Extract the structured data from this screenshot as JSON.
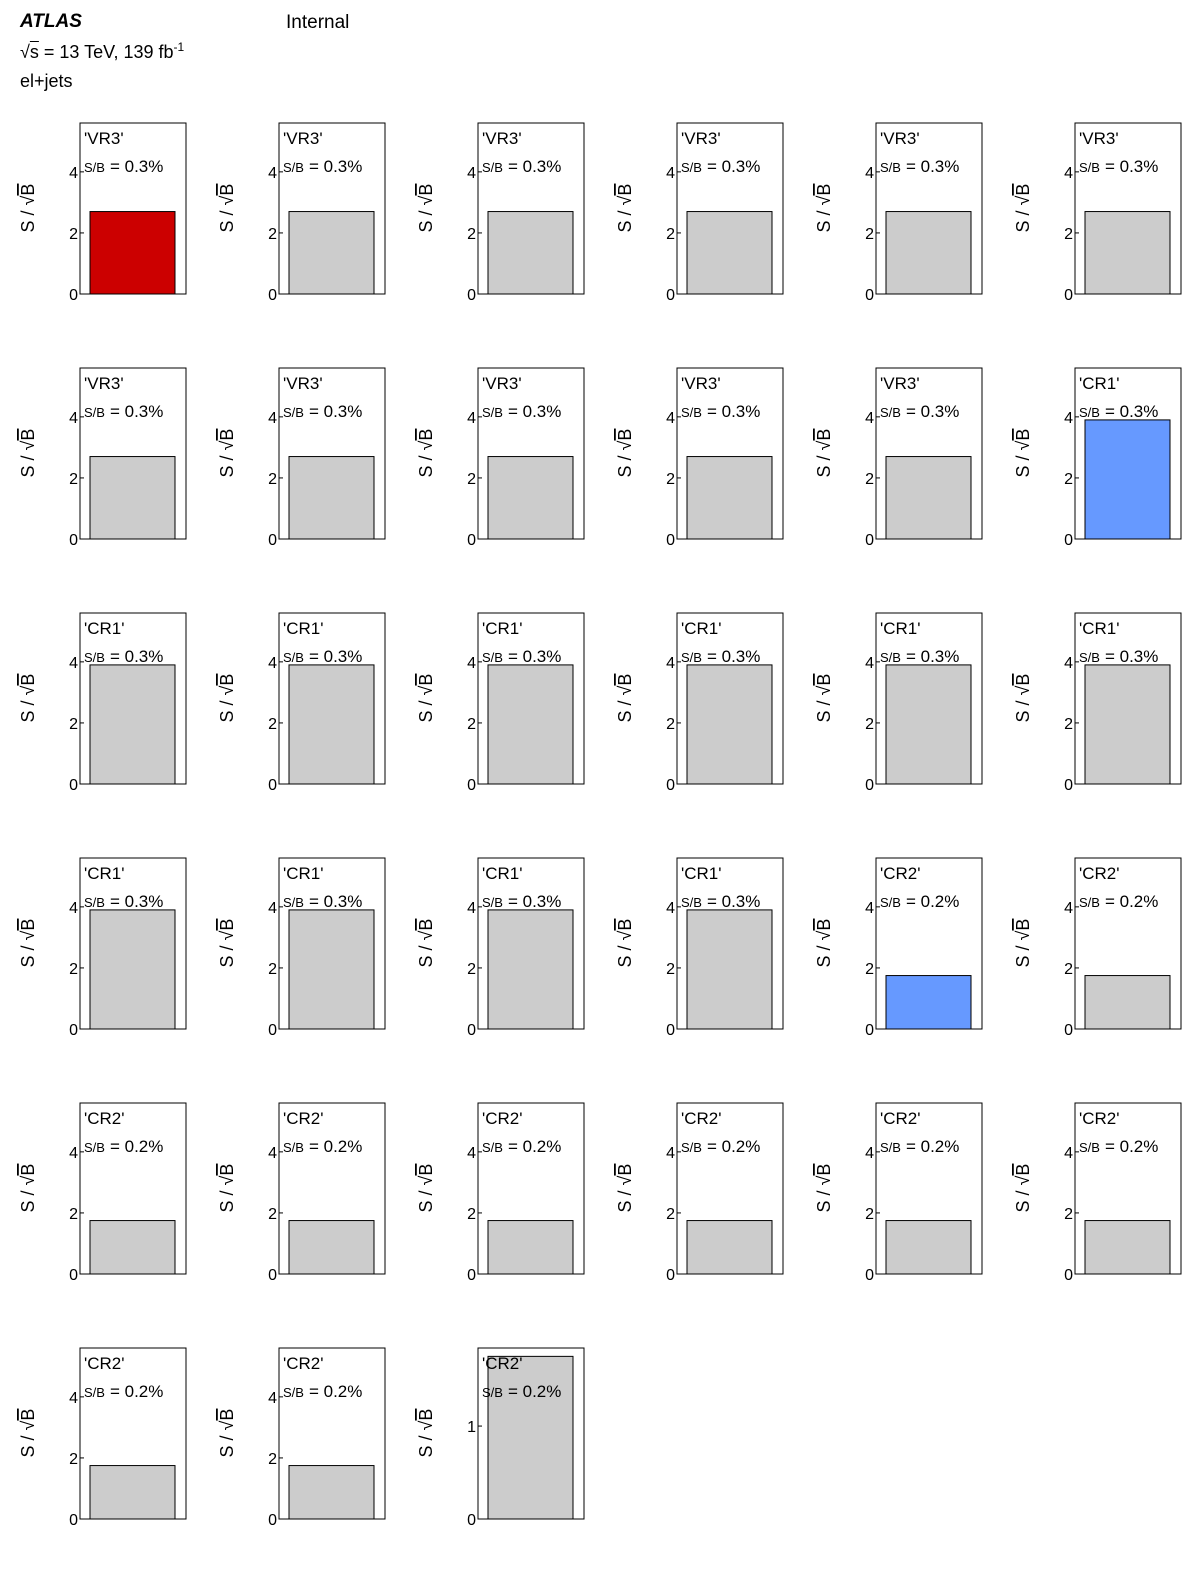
{
  "header": {
    "experiment": "ATLAS",
    "status": "Internal",
    "sqrt_symbol": "√",
    "sqrt_arg": "s",
    "energy_text": " = 13 TeV, 139 fb",
    "lumi_exponent": "-1",
    "channel": "el+jets"
  },
  "axis_label": {
    "prefix": "S / ",
    "sqrt_symbol": "√",
    "sqrt_arg": "B"
  },
  "sb_prefix": "S/B",
  "colors": {
    "default": "#cccccc",
    "red": "#cc0000",
    "blue": "#6699ff"
  },
  "chart_data": [
    {
      "type": "bar",
      "region": "'VR3'",
      "sb": "= 0.3%",
      "value": 2.7,
      "ylim": [
        0,
        5.6
      ],
      "yticks": [
        0,
        2,
        4
      ],
      "color": "red"
    },
    {
      "type": "bar",
      "region": "'VR3'",
      "sb": "= 0.3%",
      "value": 2.7,
      "ylim": [
        0,
        5.6
      ],
      "yticks": [
        0,
        2,
        4
      ],
      "color": "default"
    },
    {
      "type": "bar",
      "region": "'VR3'",
      "sb": "= 0.3%",
      "value": 2.7,
      "ylim": [
        0,
        5.6
      ],
      "yticks": [
        0,
        2,
        4
      ],
      "color": "default"
    },
    {
      "type": "bar",
      "region": "'VR3'",
      "sb": "= 0.3%",
      "value": 2.7,
      "ylim": [
        0,
        5.6
      ],
      "yticks": [
        0,
        2,
        4
      ],
      "color": "default"
    },
    {
      "type": "bar",
      "region": "'VR3'",
      "sb": "= 0.3%",
      "value": 2.7,
      "ylim": [
        0,
        5.6
      ],
      "yticks": [
        0,
        2,
        4
      ],
      "color": "default"
    },
    {
      "type": "bar",
      "region": "'VR3'",
      "sb": "= 0.3%",
      "value": 2.7,
      "ylim": [
        0,
        5.6
      ],
      "yticks": [
        0,
        2,
        4
      ],
      "color": "default"
    },
    {
      "type": "bar",
      "region": "'VR3'",
      "sb": "= 0.3%",
      "value": 2.7,
      "ylim": [
        0,
        5.6
      ],
      "yticks": [
        0,
        2,
        4
      ],
      "color": "default"
    },
    {
      "type": "bar",
      "region": "'VR3'",
      "sb": "= 0.3%",
      "value": 2.7,
      "ylim": [
        0,
        5.6
      ],
      "yticks": [
        0,
        2,
        4
      ],
      "color": "default"
    },
    {
      "type": "bar",
      "region": "'VR3'",
      "sb": "= 0.3%",
      "value": 2.7,
      "ylim": [
        0,
        5.6
      ],
      "yticks": [
        0,
        2,
        4
      ],
      "color": "default"
    },
    {
      "type": "bar",
      "region": "'VR3'",
      "sb": "= 0.3%",
      "value": 2.7,
      "ylim": [
        0,
        5.6
      ],
      "yticks": [
        0,
        2,
        4
      ],
      "color": "default"
    },
    {
      "type": "bar",
      "region": "'VR3'",
      "sb": "= 0.3%",
      "value": 2.7,
      "ylim": [
        0,
        5.6
      ],
      "yticks": [
        0,
        2,
        4
      ],
      "color": "default"
    },
    {
      "type": "bar",
      "region": "'CR1'",
      "sb": "= 0.3%",
      "value": 3.9,
      "ylim": [
        0,
        5.6
      ],
      "yticks": [
        0,
        2,
        4
      ],
      "color": "blue"
    },
    {
      "type": "bar",
      "region": "'CR1'",
      "sb": "= 0.3%",
      "value": 3.9,
      "ylim": [
        0,
        5.6
      ],
      "yticks": [
        0,
        2,
        4
      ],
      "color": "default"
    },
    {
      "type": "bar",
      "region": "'CR1'",
      "sb": "= 0.3%",
      "value": 3.9,
      "ylim": [
        0,
        5.6
      ],
      "yticks": [
        0,
        2,
        4
      ],
      "color": "default"
    },
    {
      "type": "bar",
      "region": "'CR1'",
      "sb": "= 0.3%",
      "value": 3.9,
      "ylim": [
        0,
        5.6
      ],
      "yticks": [
        0,
        2,
        4
      ],
      "color": "default"
    },
    {
      "type": "bar",
      "region": "'CR1'",
      "sb": "= 0.3%",
      "value": 3.9,
      "ylim": [
        0,
        5.6
      ],
      "yticks": [
        0,
        2,
        4
      ],
      "color": "default"
    },
    {
      "type": "bar",
      "region": "'CR1'",
      "sb": "= 0.3%",
      "value": 3.9,
      "ylim": [
        0,
        5.6
      ],
      "yticks": [
        0,
        2,
        4
      ],
      "color": "default"
    },
    {
      "type": "bar",
      "region": "'CR1'",
      "sb": "= 0.3%",
      "value": 3.9,
      "ylim": [
        0,
        5.6
      ],
      "yticks": [
        0,
        2,
        4
      ],
      "color": "default"
    },
    {
      "type": "bar",
      "region": "'CR1'",
      "sb": "= 0.3%",
      "value": 3.9,
      "ylim": [
        0,
        5.6
      ],
      "yticks": [
        0,
        2,
        4
      ],
      "color": "default"
    },
    {
      "type": "bar",
      "region": "'CR1'",
      "sb": "= 0.3%",
      "value": 3.9,
      "ylim": [
        0,
        5.6
      ],
      "yticks": [
        0,
        2,
        4
      ],
      "color": "default"
    },
    {
      "type": "bar",
      "region": "'CR1'",
      "sb": "= 0.3%",
      "value": 3.9,
      "ylim": [
        0,
        5.6
      ],
      "yticks": [
        0,
        2,
        4
      ],
      "color": "default"
    },
    {
      "type": "bar",
      "region": "'CR1'",
      "sb": "= 0.3%",
      "value": 3.9,
      "ylim": [
        0,
        5.6
      ],
      "yticks": [
        0,
        2,
        4
      ],
      "color": "default"
    },
    {
      "type": "bar",
      "region": "'CR2'",
      "sb": "= 0.2%",
      "value": 1.75,
      "ylim": [
        0,
        5.6
      ],
      "yticks": [
        0,
        2,
        4
      ],
      "color": "blue"
    },
    {
      "type": "bar",
      "region": "'CR2'",
      "sb": "= 0.2%",
      "value": 1.75,
      "ylim": [
        0,
        5.6
      ],
      "yticks": [
        0,
        2,
        4
      ],
      "color": "default"
    },
    {
      "type": "bar",
      "region": "'CR2'",
      "sb": "= 0.2%",
      "value": 1.75,
      "ylim": [
        0,
        5.6
      ],
      "yticks": [
        0,
        2,
        4
      ],
      "color": "default"
    },
    {
      "type": "bar",
      "region": "'CR2'",
      "sb": "= 0.2%",
      "value": 1.75,
      "ylim": [
        0,
        5.6
      ],
      "yticks": [
        0,
        2,
        4
      ],
      "color": "default"
    },
    {
      "type": "bar",
      "region": "'CR2'",
      "sb": "= 0.2%",
      "value": 1.75,
      "ylim": [
        0,
        5.6
      ],
      "yticks": [
        0,
        2,
        4
      ],
      "color": "default"
    },
    {
      "type": "bar",
      "region": "'CR2'",
      "sb": "= 0.2%",
      "value": 1.75,
      "ylim": [
        0,
        5.6
      ],
      "yticks": [
        0,
        2,
        4
      ],
      "color": "default"
    },
    {
      "type": "bar",
      "region": "'CR2'",
      "sb": "= 0.2%",
      "value": 1.75,
      "ylim": [
        0,
        5.6
      ],
      "yticks": [
        0,
        2,
        4
      ],
      "color": "default"
    },
    {
      "type": "bar",
      "region": "'CR2'",
      "sb": "= 0.2%",
      "value": 1.75,
      "ylim": [
        0,
        5.6
      ],
      "yticks": [
        0,
        2,
        4
      ],
      "color": "default"
    },
    {
      "type": "bar",
      "region": "'CR2'",
      "sb": "= 0.2%",
      "value": 1.75,
      "ylim": [
        0,
        5.6
      ],
      "yticks": [
        0,
        2,
        4
      ],
      "color": "default"
    },
    {
      "type": "bar",
      "region": "'CR2'",
      "sb": "= 0.2%",
      "value": 1.75,
      "ylim": [
        0,
        5.6
      ],
      "yticks": [
        0,
        2,
        4
      ],
      "color": "default"
    },
    {
      "type": "bar",
      "region": "'CR2'",
      "sb": "= 0.2%",
      "value": 1.75,
      "ylim": [
        0,
        1.84
      ],
      "yticks": [
        0,
        1
      ],
      "color": "default"
    }
  ]
}
